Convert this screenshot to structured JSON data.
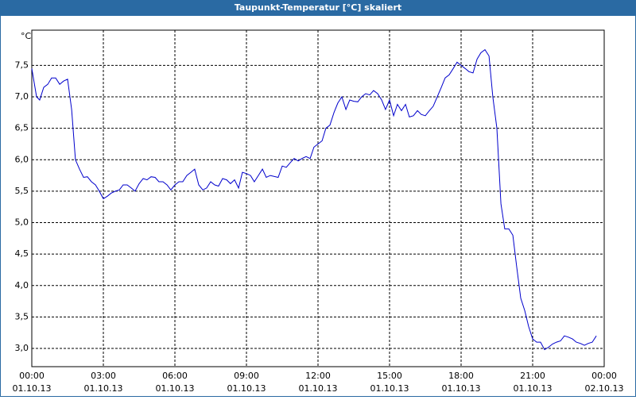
{
  "chart_data": {
    "type": "line",
    "title": "Taupunkt-Temperatur [°C] skaliert",
    "ylabel": "°C",
    "x": [
      0,
      0.2,
      0.33,
      0.5,
      0.67,
      0.83,
      1.0,
      1.17,
      1.33,
      1.5,
      1.67,
      1.83,
      2.0,
      2.17,
      2.33,
      2.5,
      2.67,
      2.83,
      3.0,
      3.17,
      3.33,
      3.5,
      3.67,
      3.83,
      4.0,
      4.17,
      4.33,
      4.5,
      4.67,
      4.83,
      5.0,
      5.17,
      5.33,
      5.5,
      5.67,
      5.83,
      6.0,
      6.17,
      6.33,
      6.5,
      6.67,
      6.83,
      7.0,
      7.17,
      7.33,
      7.5,
      7.67,
      7.83,
      8.0,
      8.17,
      8.33,
      8.5,
      8.67,
      8.83,
      9.0,
      9.17,
      9.33,
      9.5,
      9.67,
      9.83,
      10.0,
      10.33,
      10.5,
      10.67,
      10.83,
      11.0,
      11.17,
      11.33,
      11.5,
      11.67,
      11.83,
      12.0,
      12.17,
      12.33,
      12.5,
      12.67,
      12.83,
      13.0,
      13.17,
      13.33,
      13.5,
      13.67,
      13.83,
      14.0,
      14.17,
      14.33,
      14.5,
      14.67,
      14.83,
      15.0,
      15.17,
      15.33,
      15.5,
      15.67,
      15.83,
      16.0,
      16.17,
      16.33,
      16.5,
      16.67,
      16.83,
      17.0,
      17.17,
      17.33,
      17.5,
      17.67,
      17.83,
      18.0,
      18.17,
      18.33,
      18.5,
      18.67,
      18.83,
      19.0,
      19.17,
      19.33,
      19.5,
      19.67,
      19.83,
      20.0,
      20.17,
      20.33,
      20.5,
      20.67,
      20.83,
      21.0,
      21.17,
      21.33,
      21.5,
      21.67,
      21.83,
      22.0,
      22.17,
      22.33,
      22.5,
      22.67,
      22.83,
      23.0,
      23.17,
      23.33,
      23.5,
      23.67
    ],
    "series": [
      {
        "name": "Taupunkt-Temperatur",
        "color": "#0000cc",
        "values": [
          7.45,
          7.0,
          6.95,
          7.15,
          7.2,
          7.3,
          7.3,
          7.2,
          7.25,
          7.28,
          6.8,
          6.0,
          5.85,
          5.72,
          5.73,
          5.65,
          5.6,
          5.5,
          5.38,
          5.42,
          5.47,
          5.5,
          5.52,
          5.6,
          5.6,
          5.55,
          5.5,
          5.62,
          5.7,
          5.68,
          5.73,
          5.72,
          5.65,
          5.65,
          5.6,
          5.52,
          5.6,
          5.65,
          5.65,
          5.75,
          5.8,
          5.85,
          5.6,
          5.52,
          5.55,
          5.65,
          5.6,
          5.58,
          5.7,
          5.68,
          5.62,
          5.68,
          5.55,
          5.8,
          5.78,
          5.75,
          5.65,
          5.75,
          5.85,
          5.72,
          5.75,
          5.72,
          5.9,
          5.88,
          5.95,
          6.02,
          5.98,
          6.02,
          6.05,
          6.02,
          6.2,
          6.25,
          6.3,
          6.5,
          6.55,
          6.75,
          6.9,
          7.0,
          6.8,
          6.95,
          6.93,
          6.92,
          7.0,
          7.05,
          7.03,
          7.1,
          7.05,
          6.95,
          6.8,
          6.95,
          6.7,
          6.88,
          6.78,
          6.88,
          6.68,
          6.7,
          6.78,
          6.72,
          6.7,
          6.78,
          6.85,
          7.0,
          7.15,
          7.3,
          7.35,
          7.45,
          7.55,
          7.5,
          7.45,
          7.4,
          7.38,
          7.6,
          7.7,
          7.75,
          7.65,
          7.0,
          6.5,
          5.3,
          4.9,
          4.9,
          4.8,
          4.3,
          3.8,
          3.6,
          3.35,
          3.15,
          3.1,
          3.1,
          2.98,
          3.02,
          3.07,
          3.1,
          3.12,
          3.2,
          3.18,
          3.15,
          3.1,
          3.08,
          3.05,
          3.08,
          3.1,
          3.2
        ]
      }
    ],
    "xlim": [
      0,
      24
    ],
    "xticks": [
      {
        "value": 0,
        "label": "00:00"
      },
      {
        "value": 3,
        "label": "03:00"
      },
      {
        "value": 6,
        "label": "06:00"
      },
      {
        "value": 9,
        "label": "09:00"
      },
      {
        "value": 12,
        "label": "12:00"
      },
      {
        "value": 15,
        "label": "15:00"
      },
      {
        "value": 18,
        "label": "18:00"
      },
      {
        "value": 21,
        "label": "21:00"
      },
      {
        "value": 24,
        "label": "00:00"
      }
    ],
    "xtick_dates": [
      "01.10.13",
      "01.10.13",
      "01.10.13",
      "01.10.13",
      "01.10.13",
      "01.10.13",
      "01.10.13",
      "01.10.13",
      "02.10.13"
    ],
    "ylim": [
      2.71,
      8.06
    ],
    "yticks": [
      {
        "value": 3.0,
        "label": "3,0"
      },
      {
        "value": 3.5,
        "label": "3,5"
      },
      {
        "value": 4.0,
        "label": "4,0"
      },
      {
        "value": 4.5,
        "label": "4,5"
      },
      {
        "value": 5.0,
        "label": "5,0"
      },
      {
        "value": 5.5,
        "label": "5,5"
      },
      {
        "value": 6.0,
        "label": "6,0"
      },
      {
        "value": 6.5,
        "label": "6,5"
      },
      {
        "value": 7.0,
        "label": "7,0"
      },
      {
        "value": 7.5,
        "label": "7,5"
      }
    ],
    "grid": true
  }
}
